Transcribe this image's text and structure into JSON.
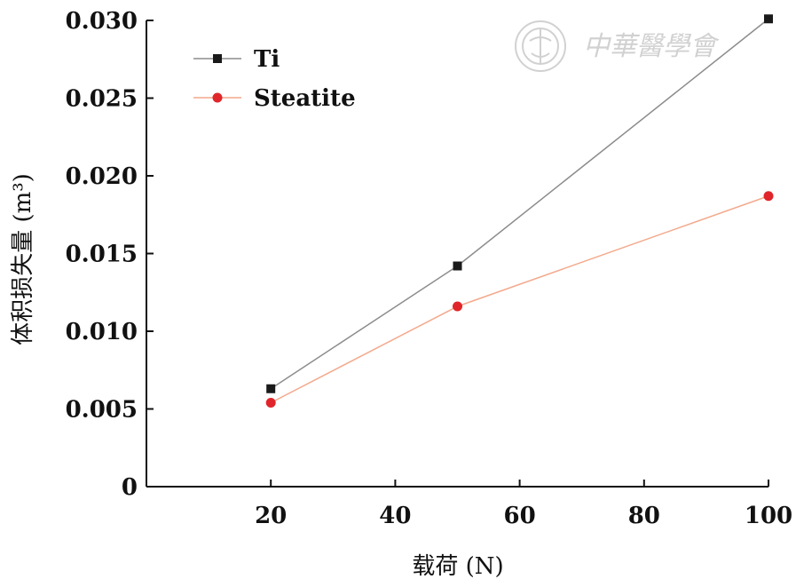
{
  "chart_data": {
    "type": "line",
    "xlabel": "载荷 (N)",
    "ylabel": "体积损失量 (m³)",
    "xlim": [
      0,
      100
    ],
    "ylim": [
      0,
      0.03
    ],
    "x_ticks": [
      20,
      40,
      60,
      80,
      100
    ],
    "y_ticks": [
      0,
      0.005,
      0.01,
      0.015,
      0.02,
      0.025,
      0.03
    ],
    "y_tick_labels": [
      "0",
      "0.005",
      "0.010",
      "0.015",
      "0.020",
      "0.025",
      "0.030"
    ],
    "x": [
      20,
      50,
      100
    ],
    "series": [
      {
        "name": "Ti",
        "values": [
          0.0063,
          0.0142,
          0.0301
        ],
        "color": "#1a1a1a",
        "line_color": "#8c8c8c",
        "marker": "square"
      },
      {
        "name": "Steatite",
        "values": [
          0.0054,
          0.0116,
          0.0187
        ],
        "color": "#e0262a",
        "line_color": "#f3a98c",
        "marker": "circle"
      }
    ],
    "legend_position": "top-left",
    "grid": false
  },
  "watermark": {
    "text": "中華醫學會",
    "icon": "medical-association-emblem-icon"
  }
}
